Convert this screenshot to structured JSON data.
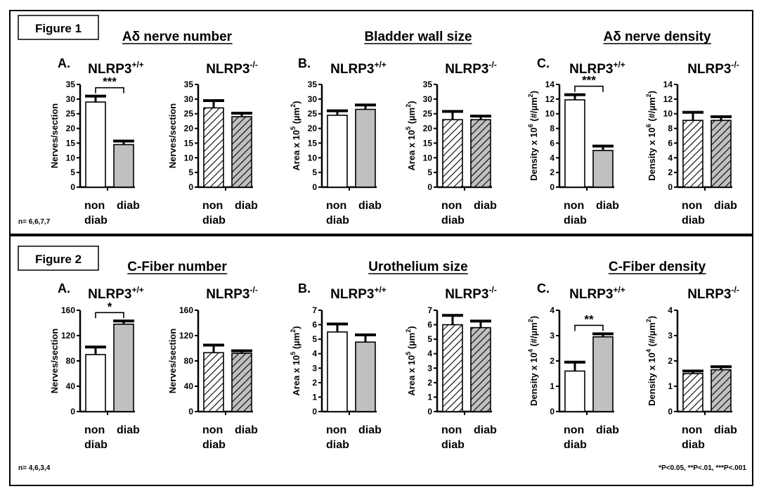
{
  "figures": [
    {
      "label": "Figure 1",
      "n_note": "n= 6,6,7,7",
      "sig_note": "",
      "panels": [
        {
          "letter": "A.",
          "title": "Aδ nerve number",
          "ylabel": "Nerves/section",
          "ylabel_sup": "",
          "ylabel_tail": "",
          "ylim": [
            0,
            35
          ],
          "yticks": [
            "0",
            "5",
            "10",
            "15",
            "20",
            "25",
            "30",
            "35"
          ],
          "subplots": [
            {
              "genotype": "NLRP3",
              "genotype_sup": "+/+",
              "style": "solid",
              "values": [
                29,
                14.5
              ],
              "errors": [
                2,
                1.2
              ],
              "sig": "***"
            },
            {
              "genotype": "NLRP3",
              "genotype_sup": "-/-",
              "style": "hatched",
              "values": [
                27,
                24
              ],
              "errors": [
                2.5,
                1.2
              ],
              "sig": ""
            }
          ]
        },
        {
          "letter": "B.",
          "title": "Bladder wall size",
          "ylabel": "Area x 10",
          "ylabel_sup": "5",
          "ylabel_tail": " (µm",
          "ylabel_sup2": "2",
          "ylabel_end": ")",
          "ylim": [
            0,
            35
          ],
          "yticks": [
            "0",
            "5",
            "10",
            "15",
            "20",
            "25",
            "30",
            "35"
          ],
          "subplots": [
            {
              "genotype": "NLRP3",
              "genotype_sup": "+/+",
              "style": "solid",
              "values": [
                24.5,
                26.5
              ],
              "errors": [
                1.5,
                1.5
              ],
              "sig": ""
            },
            {
              "genotype": "NLRP3",
              "genotype_sup": "-/-",
              "style": "hatched",
              "values": [
                23,
                23
              ],
              "errors": [
                2.8,
                1.2
              ],
              "sig": ""
            }
          ]
        },
        {
          "letter": "C.",
          "title": "Aδ nerve density",
          "ylabel": "Density x 10",
          "ylabel_sup": "6",
          "ylabel_tail": " (#/µm",
          "ylabel_sup2": "2",
          "ylabel_end": ")",
          "ylim": [
            0,
            14
          ],
          "yticks": [
            "0",
            "2",
            "4",
            "6",
            "8",
            "10",
            "12",
            "14"
          ],
          "subplots": [
            {
              "genotype": "NLRP3",
              "genotype_sup": "+/+",
              "style": "solid",
              "values": [
                11.9,
                5
              ],
              "errors": [
                0.7,
                0.6
              ],
              "sig": "***"
            },
            {
              "genotype": "NLRP3",
              "genotype_sup": "-/-",
              "style": "hatched",
              "values": [
                9.1,
                9.1
              ],
              "errors": [
                1.1,
                0.5
              ],
              "sig": ""
            }
          ]
        }
      ]
    },
    {
      "label": "Figure 2",
      "n_note": "n= 4,6,3,4",
      "sig_note": "*P<0.05, **P<.01, ***P<.001",
      "panels": [
        {
          "letter": "A.",
          "title": "C-Fiber number",
          "ylabel": "Nerves/section",
          "ylabel_sup": "",
          "ylabel_tail": "",
          "ylim": [
            0,
            160
          ],
          "yticks": [
            "0",
            "40",
            "80",
            "120",
            "160"
          ],
          "subplots": [
            {
              "genotype": "NLRP3",
              "genotype_sup": "+/+",
              "style": "solid",
              "values": [
                90,
                138
              ],
              "errors": [
                12,
                5
              ],
              "sig": "*"
            },
            {
              "genotype": "NLRP3",
              "genotype_sup": "-/-",
              "style": "hatched",
              "values": [
                93,
                92
              ],
              "errors": [
                12,
                4
              ],
              "sig": ""
            }
          ]
        },
        {
          "letter": "B.",
          "title": "Urothelium size",
          "ylabel": "Area x 10",
          "ylabel_sup": "5",
          "ylabel_tail": " (µm",
          "ylabel_sup2": "2",
          "ylabel_end": ")",
          "ylim": [
            0,
            7
          ],
          "yticks": [
            "0",
            "1",
            "2",
            "3",
            "4",
            "5",
            "6",
            "7"
          ],
          "subplots": [
            {
              "genotype": "NLRP3",
              "genotype_sup": "+/+",
              "style": "solid",
              "values": [
                5.5,
                4.8
              ],
              "errors": [
                0.55,
                0.5
              ],
              "sig": ""
            },
            {
              "genotype": "NLRP3",
              "genotype_sup": "-/-",
              "style": "hatched",
              "values": [
                6.0,
                5.8
              ],
              "errors": [
                0.65,
                0.45
              ],
              "sig": ""
            }
          ]
        },
        {
          "letter": "C.",
          "title": "C-Fiber density",
          "ylabel": "Density x 10",
          "ylabel_sup": "4",
          "ylabel_tail": " (#/µm",
          "ylabel_sup2": "2",
          "ylabel_end": ")",
          "ylim": [
            0,
            4
          ],
          "yticks": [
            "0",
            "1",
            "2",
            "3",
            "4"
          ],
          "subplots": [
            {
              "genotype": "NLRP3",
              "genotype_sup": "+/+",
              "style": "solid",
              "values": [
                1.6,
                2.95
              ],
              "errors": [
                0.35,
                0.12
              ],
              "sig": "**"
            },
            {
              "genotype": "NLRP3",
              "genotype_sup": "-/-",
              "style": "hatched",
              "values": [
                1.5,
                1.65
              ],
              "errors": [
                0.1,
                0.12
              ],
              "sig": ""
            }
          ]
        }
      ]
    }
  ],
  "xlabels": {
    "left_top": "non",
    "left_bottom": "diab",
    "right": "diab"
  },
  "colors": {
    "bar1": "#ffffff",
    "bar2": "#c0c0c0",
    "ink": "#000000"
  },
  "chart_data": {
    "type": "bar",
    "categories": [
      "non diab",
      "diab"
    ],
    "charts": [
      {
        "title": "Aδ nerve number",
        "genotype": "NLRP3+/+",
        "ylim": [
          0,
          35
        ],
        "values": [
          29,
          14.5
        ]
      },
      {
        "title": "Aδ nerve number",
        "genotype": "NLRP3-/-",
        "ylim": [
          0,
          35
        ],
        "values": [
          27,
          24
        ]
      },
      {
        "title": "Bladder wall size",
        "genotype": "NLRP3+/+",
        "ylim": [
          0,
          35
        ],
        "values": [
          24.5,
          26.5
        ]
      },
      {
        "title": "Bladder wall size",
        "genotype": "NLRP3-/-",
        "ylim": [
          0,
          35
        ],
        "values": [
          23,
          23
        ]
      },
      {
        "title": "Aδ nerve density",
        "genotype": "NLRP3+/+",
        "ylim": [
          0,
          14
        ],
        "values": [
          11.9,
          5
        ]
      },
      {
        "title": "Aδ nerve density",
        "genotype": "NLRP3-/-",
        "ylim": [
          0,
          14
        ],
        "values": [
          9.1,
          9.1
        ]
      },
      {
        "title": "C-Fiber number",
        "genotype": "NLRP3+/+",
        "ylim": [
          0,
          160
        ],
        "values": [
          90,
          138
        ]
      },
      {
        "title": "C-Fiber number",
        "genotype": "NLRP3-/-",
        "ylim": [
          0,
          160
        ],
        "values": [
          93,
          92
        ]
      },
      {
        "title": "Urothelium size",
        "genotype": "NLRP3+/+",
        "ylim": [
          0,
          7
        ],
        "values": [
          5.5,
          4.8
        ]
      },
      {
        "title": "Urothelium size",
        "genotype": "NLRP3-/-",
        "ylim": [
          0,
          7
        ],
        "values": [
          6.0,
          5.8
        ]
      },
      {
        "title": "C-Fiber density",
        "genotype": "NLRP3+/+",
        "ylim": [
          0,
          4
        ],
        "values": [
          1.6,
          2.95
        ]
      },
      {
        "title": "C-Fiber density",
        "genotype": "NLRP3-/-",
        "ylim": [
          0,
          4
        ],
        "values": [
          1.5,
          1.65
        ]
      }
    ]
  }
}
